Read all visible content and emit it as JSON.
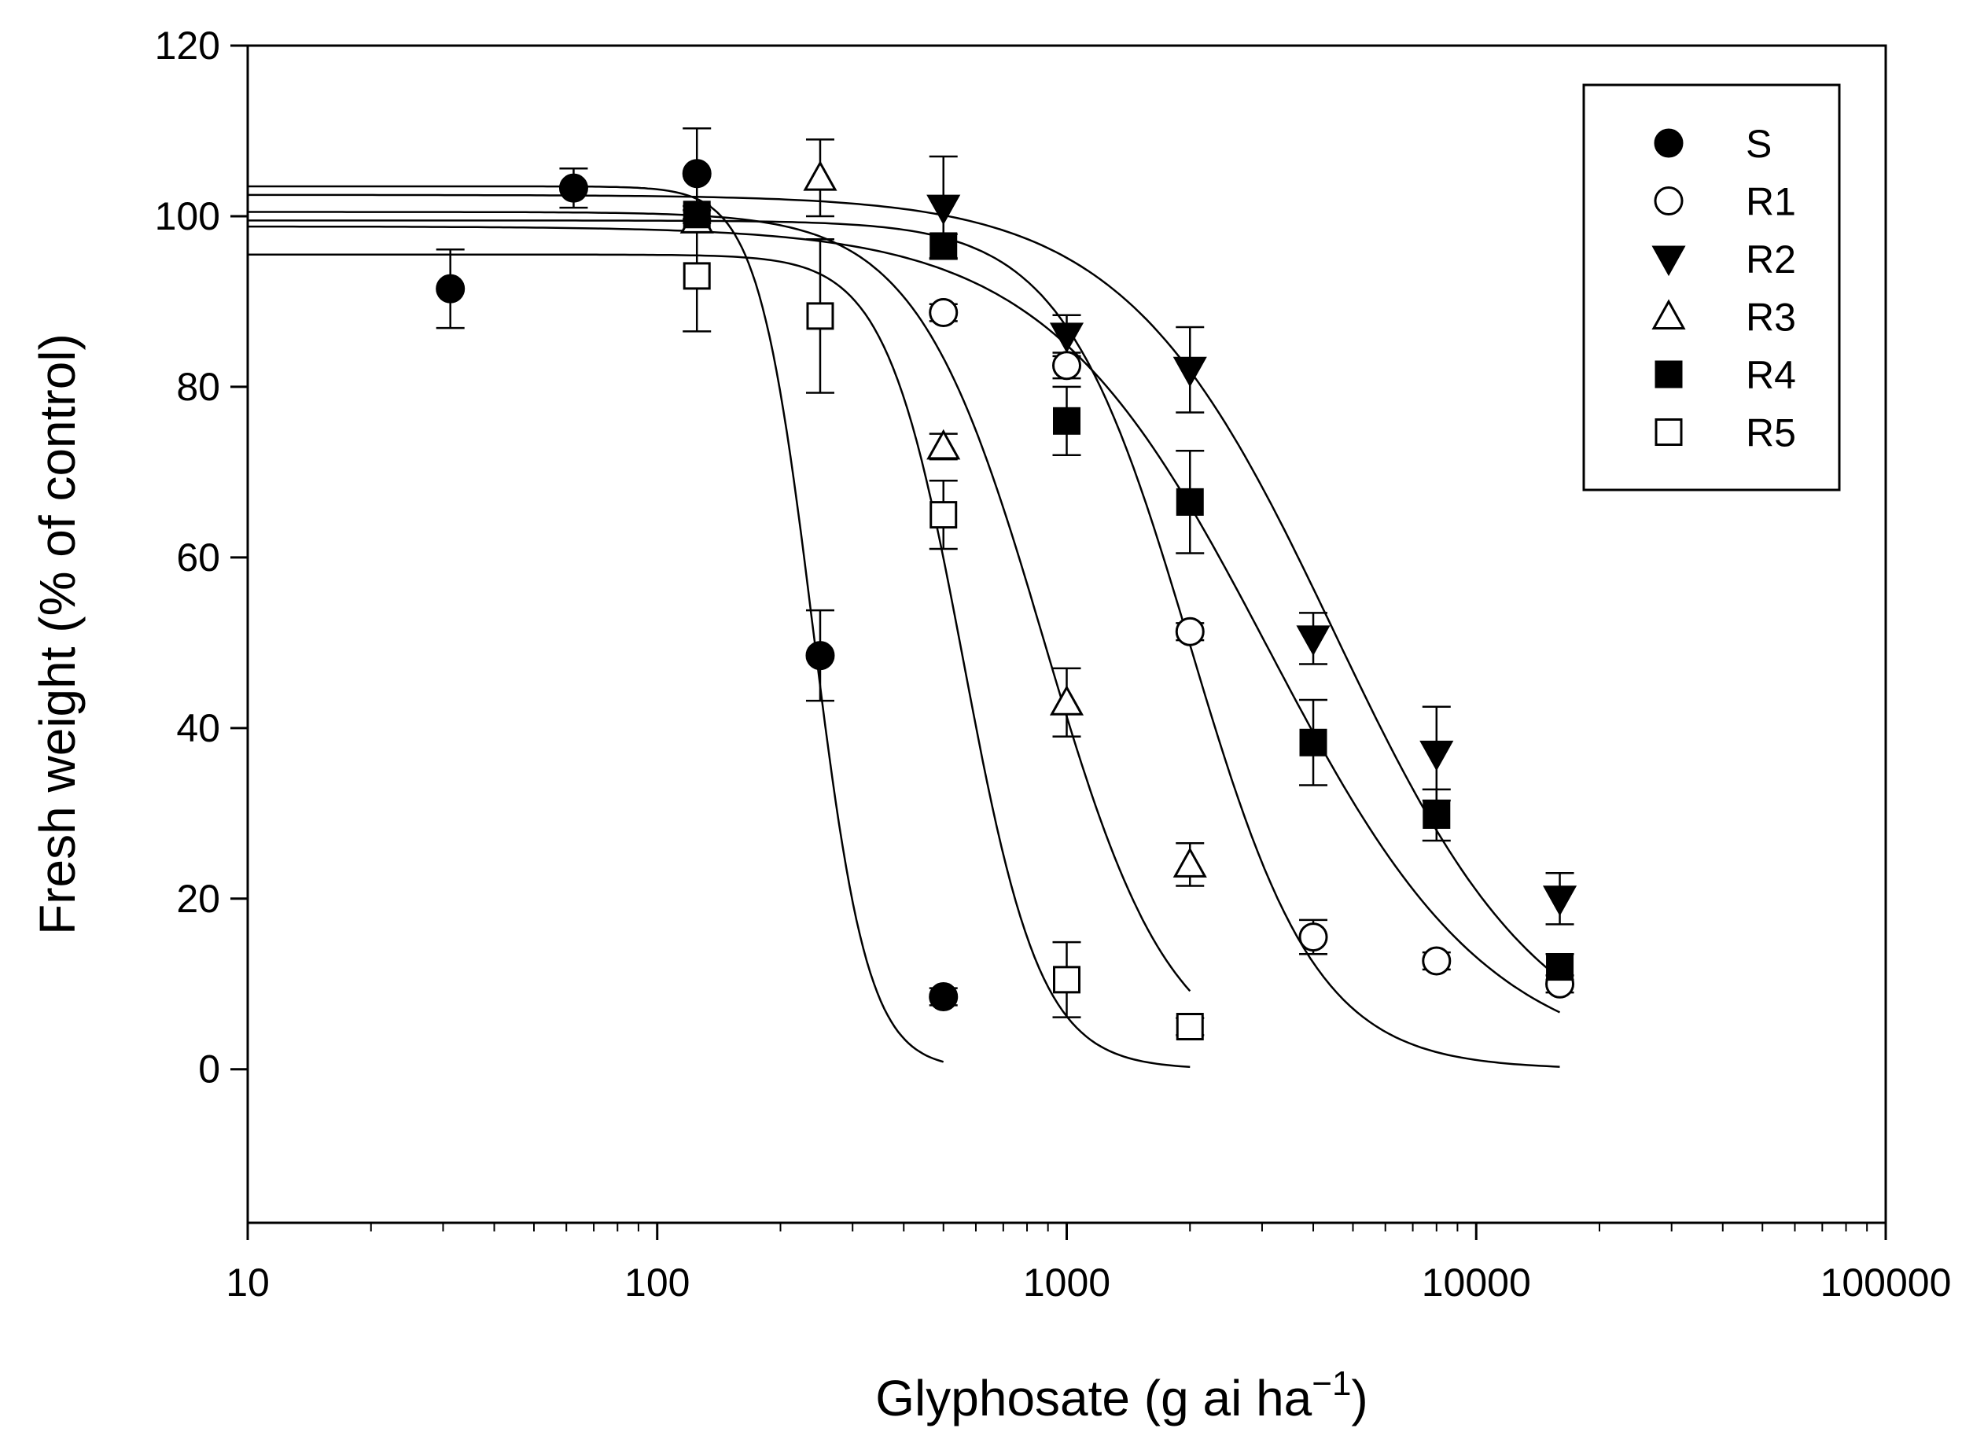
{
  "chart_data": {
    "type": "scatter",
    "title": "",
    "xlabel_main": "Glyphosate (g ai ha",
    "xlabel_sup": "−1",
    "xlabel_close": ")",
    "ylabel": "Fresh weight (% of control)",
    "xscale": "log",
    "xlim": [
      10,
      100000
    ],
    "ylim": [
      -18,
      120
    ],
    "xticks": [
      10,
      100,
      1000,
      10000,
      100000
    ],
    "xtick_labels": [
      "10",
      "100",
      "1000",
      "10000",
      "100000"
    ],
    "yticks": [
      0,
      20,
      40,
      60,
      80,
      100,
      120
    ],
    "ytick_labels": [
      "0",
      "20",
      "40",
      "60",
      "80",
      "100",
      "120"
    ],
    "grid": false,
    "legend_position": "top-right",
    "series": [
      {
        "name": "S",
        "marker": "circle-filled",
        "x": [
          31.25,
          62.5,
          125,
          250,
          500
        ],
        "y": [
          91.5,
          103.3,
          105.0,
          48.5,
          8.5
        ],
        "err": [
          4.6,
          2.3,
          5.3,
          5.3,
          1.0
        ],
        "fit": {
          "top": 103.5,
          "ed50": 240,
          "slope": 6.5,
          "xmin": 10,
          "xmax": 500
        }
      },
      {
        "name": "R1",
        "marker": "circle-open",
        "x": [
          500,
          1000,
          2000,
          4000,
          8000,
          16000
        ],
        "y": [
          88.7,
          82.5,
          51.3,
          15.5,
          12.7,
          10.0
        ],
        "err": [
          1.0,
          1.5,
          1.0,
          2.0,
          1.0,
          1.0
        ],
        "fit": {
          "top": 99.5,
          "ed50": 2000,
          "slope": 2.8,
          "xmin": 10,
          "xmax": 16000
        }
      },
      {
        "name": "R2",
        "marker": "triangle-down-filled",
        "x": [
          500,
          1000,
          2000,
          4000,
          8000,
          16000
        ],
        "y": [
          101.0,
          86.0,
          82.0,
          50.5,
          37.0,
          20.0
        ],
        "err": [
          6.0,
          2.4,
          5.0,
          3.0,
          5.5,
          3.0
        ],
        "fit": {
          "top": 102.5,
          "ed50": 4500,
          "slope": 1.7,
          "xmin": 10,
          "xmax": 16000
        }
      },
      {
        "name": "R3",
        "marker": "triangle-up-open",
        "x": [
          125,
          250,
          500,
          1000,
          2000
        ],
        "y": [
          99.5,
          104.5,
          73.0,
          43.0,
          24.0
        ],
        "err": [
          1.2,
          4.5,
          1.5,
          4.0,
          2.5
        ],
        "fit": {
          "top": 100.5,
          "ed50": 880,
          "slope": 2.8,
          "xmin": 10,
          "xmax": 2000
        }
      },
      {
        "name": "R4",
        "marker": "square-filled",
        "x": [
          125,
          500,
          1000,
          2000,
          4000,
          8000,
          16000
        ],
        "y": [
          100.2,
          96.5,
          76.0,
          66.5,
          38.3,
          29.8,
          12.0
        ],
        "err": [
          1.0,
          1.4,
          4.0,
          6.0,
          5.0,
          3.0,
          1.5
        ],
        "fit": {
          "top": 98.8,
          "ed50": 3100,
          "slope": 1.6,
          "xmin": 10,
          "xmax": 16000
        }
      },
      {
        "name": "R5",
        "marker": "square-open",
        "x": [
          125,
          250,
          500,
          1000,
          2000
        ],
        "y": [
          93.0,
          88.3,
          65.0,
          10.5,
          5.0
        ],
        "err": [
          6.5,
          9.0,
          4.0,
          4.4,
          1.0
        ],
        "fit": {
          "top": 95.5,
          "ed50": 560,
          "slope": 4.6,
          "xmin": 10,
          "xmax": 2000
        }
      }
    ]
  }
}
